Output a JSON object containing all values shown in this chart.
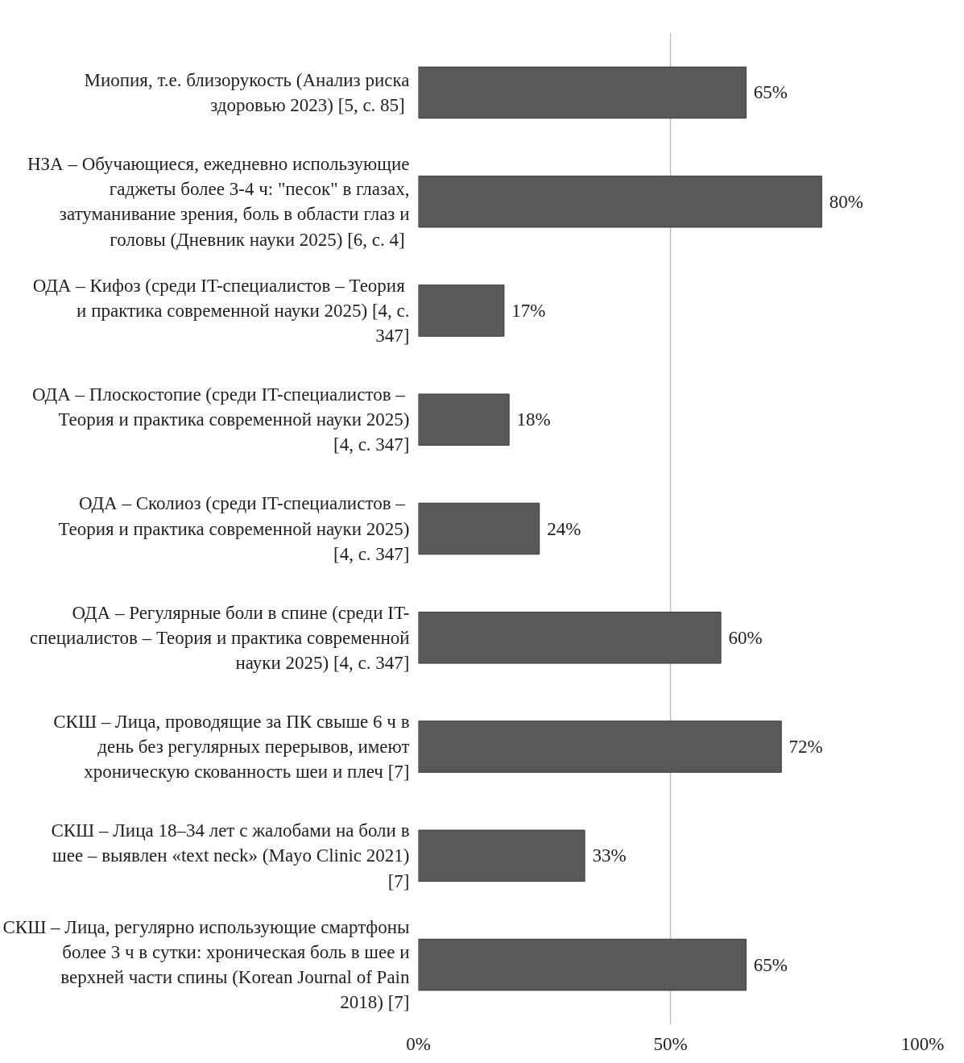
{
  "chart_data": {
    "type": "bar",
    "orientation": "horizontal",
    "categories": [
      "Миопия, т.е. близорукость (Анализ риска здоровью 2023) [5, с.  85]",
      "НЗА – Обучающиеся, ежедневно использующие гаджеты более 3-4 ч: \"песок\" в глазах, затуманивание зрения, боль в области глаз и головы (Дневник науки 2025) [6, с.  4]",
      "ОДА – Кифоз (среди IT-специалистов  – Теория и практика современной науки 2025) [4, с. 347]",
      "ОДА – Плоскостопие (среди IT-специалистов  – Теория и практика современной науки 2025) [4, с. 347]",
      "ОДА – Сколиоз (среди IT-специалистов  – Теория и практика современной науки 2025) [4, с. 347]",
      "ОДА – Регулярные боли в спине (среди IT-специалистов – Теория и практика современной науки 2025) [4, с. 347]",
      "СКШ – Лица, проводящие за ПК свыше 6 ч в день без регулярных перерывов, имеют хроническую скованность шеи и плеч [7]",
      "СКШ – Лица 18–34 лет с жалобами на боли в шее – выявлен «text neck» (Mayo Clinic 2021) [7]",
      "СКШ – Лица, регулярно использующие смартфоны более 3 ч в сутки: хроническая боль в шее и верхней части спины (Korean Journal of Pain 2018) [7]"
    ],
    "values": [
      65,
      80,
      17,
      18,
      24,
      60,
      72,
      33,
      65
    ],
    "value_labels": [
      "65%",
      "80%",
      "17%",
      "18%",
      "24%",
      "60%",
      "72%",
      "33%",
      "65%"
    ],
    "color": "#595959",
    "xlim": [
      0,
      100
    ],
    "xticks": [
      {
        "value": 0,
        "label": "0%"
      },
      {
        "value": 50,
        "label": "50%"
      },
      {
        "value": 100,
        "label": "100%"
      }
    ],
    "grid": "x"
  }
}
